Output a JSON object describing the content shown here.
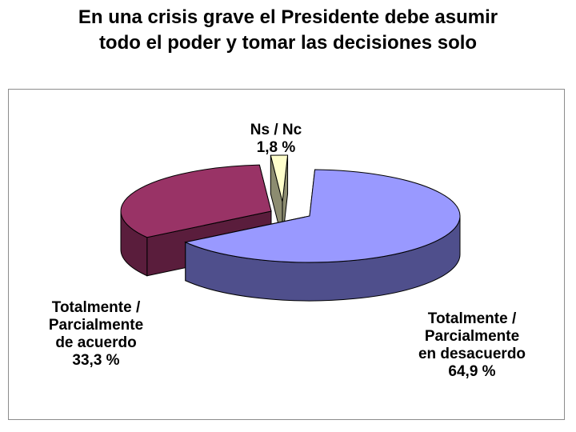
{
  "chart_data": {
    "type": "pie",
    "title_lines": [
      "En una crisis grave el Presidente debe asumir",
      "todo el poder y tomar las decisiones solo"
    ],
    "slices": [
      {
        "label_lines": [
          "Totalmente /",
          "Parcialmente",
          "en desacuerdo"
        ],
        "value_text": "64,9 %",
        "value": 64.9,
        "color": "#9999FF",
        "side_color": "#4F4F8C"
      },
      {
        "label_lines": [
          "Totalmente /",
          "Parcialmente",
          "de acuerdo"
        ],
        "value_text": "33,3 %",
        "value": 33.3,
        "color": "#993366",
        "side_color": "#5A1D3C"
      },
      {
        "label_lines": [
          "Ns / Nc"
        ],
        "value_text": "1,8 %",
        "value": 1.8,
        "color": "#FFFFCC",
        "side_color": "#8C8C70"
      }
    ],
    "legend": "none",
    "grid": false
  }
}
